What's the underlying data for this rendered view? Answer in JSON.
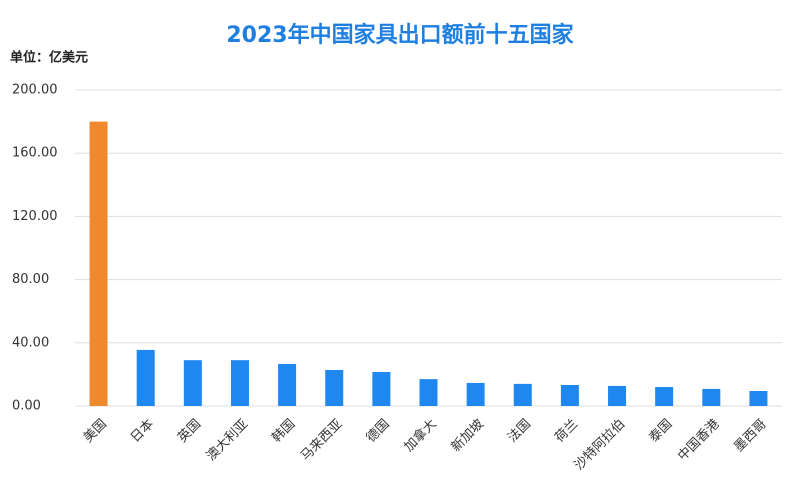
{
  "chart_data": {
    "type": "bar",
    "title": "2023年中国家具出口额前十五国家",
    "y_unit": "单位：亿美元",
    "categories": [
      "美国",
      "日本",
      "英国",
      "澳大利亚",
      "韩国",
      "马来西亚",
      "德国",
      "加拿大",
      "新加坡",
      "法国",
      "荷兰",
      "沙特阿拉伯",
      "泰国",
      "中国香港",
      "墨西哥"
    ],
    "values": [
      180,
      35.5,
      29,
      29,
      26.6,
      22.8,
      21.5,
      17,
      14.6,
      14,
      13.3,
      12.7,
      12,
      10.8,
      9.5
    ],
    "colors": [
      "#f0892e",
      "#1e88f0",
      "#1e88f0",
      "#1e88f0",
      "#1e88f0",
      "#1e88f0",
      "#1e88f0",
      "#1e88f0",
      "#1e88f0",
      "#1e88f0",
      "#1e88f0",
      "#1e88f0",
      "#1e88f0",
      "#1e88f0",
      "#1e88f0"
    ],
    "ylim": [
      0,
      200
    ],
    "yticks": [
      {
        "value": 0,
        "label": "0.00"
      },
      {
        "value": 40,
        "label": "40.00"
      },
      {
        "value": 80,
        "label": "80.00"
      },
      {
        "value": 120,
        "label": "120.00"
      },
      {
        "value": 160,
        "label": "160.00"
      },
      {
        "value": 200,
        "label": "200.00"
      }
    ],
    "grid": true
  }
}
